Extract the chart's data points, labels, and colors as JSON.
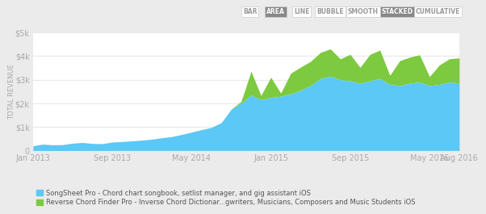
{
  "title": "",
  "ylabel": "TOTAL REVENUE",
  "fig_bg_color": "#f0f0f0",
  "plot_bg_color": "#ffffff",
  "outer_bg_color": "#ebebeb",
  "blue_color": "#5bc8f5",
  "green_color": "#7dc940",
  "x_labels": [
    "Jan 2013",
    "Sep 2013",
    "May 2014",
    "Jan 2015",
    "Sep 2015",
    "May 2016",
    "Aug 2016"
  ],
  "x_positions": [
    0,
    8,
    16,
    24,
    32,
    40,
    43
  ],
  "yticks": [
    0,
    1000,
    2000,
    3000,
    4000,
    5000
  ],
  "ytick_labels": [
    "0",
    "$1k",
    "$2k",
    "$3k",
    "$4k",
    "$5k"
  ],
  "blue_data": [
    200,
    270,
    240,
    250,
    310,
    340,
    300,
    290,
    360,
    380,
    410,
    440,
    480,
    540,
    590,
    680,
    780,
    880,
    980,
    1180,
    1750,
    2000,
    2350,
    2150,
    2250,
    2300,
    2400,
    2550,
    2750,
    3050,
    3150,
    3000,
    2950,
    2850,
    2950,
    3050,
    2800,
    2750,
    2850,
    2900,
    2750,
    2800,
    2900,
    2850
  ],
  "green_data": [
    0,
    0,
    0,
    0,
    0,
    0,
    0,
    0,
    0,
    0,
    0,
    0,
    0,
    0,
    0,
    0,
    0,
    0,
    0,
    0,
    0,
    80,
    1000,
    180,
    850,
    130,
    870,
    980,
    1020,
    1100,
    1150,
    880,
    1120,
    670,
    1120,
    1200,
    380,
    1050,
    1100,
    1150,
    380,
    820,
    980,
    1070
  ],
  "legend1": "SongSheet Pro - Chord chart songbook, setlist manager, and gig assistant",
  "legend1_suffix": " iOS",
  "legend2": "Reverse Chord Finder Pro - Inverse Chord Dictionar...gwriters, Musicians, Composers and Music Students",
  "legend2_suffix": " iOS",
  "tab_labels": [
    "BAR",
    "AREA",
    "LINE",
    "BUBBLE",
    "SMOOTH",
    "STACKED",
    "CUMULATIVE"
  ],
  "tab_active": [
    false,
    true,
    false,
    false,
    false,
    true,
    false
  ],
  "tab_bg_active": "#888888",
  "tab_bg_inactive": "#ffffff",
  "tab_text_active": "#ffffff",
  "tab_text_inactive": "#999999",
  "tab_border_color": "#cccccc",
  "grid_color": "#e8e8e8",
  "tick_color": "#aaaaaa",
  "ylabel_color": "#aaaaaa",
  "legend_text_color": "#555555"
}
